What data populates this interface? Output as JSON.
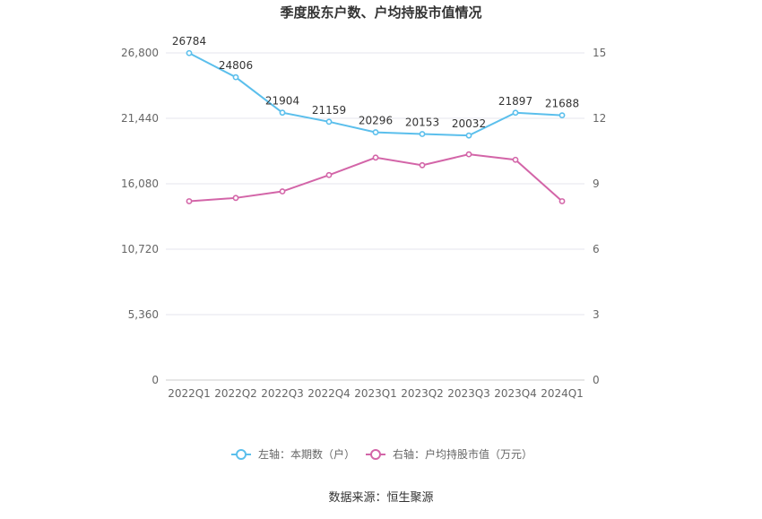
{
  "chart_data": {
    "type": "line",
    "title": "季度股东户数、户均持股市值情况",
    "categories": [
      "2022Q1",
      "2022Q2",
      "2022Q3",
      "2022Q4",
      "2023Q1",
      "2023Q2",
      "2023Q3",
      "2023Q4",
      "2024Q1"
    ],
    "left_axis": {
      "ticks": [
        "0",
        "5,360",
        "10,720",
        "16,080",
        "21,440",
        "26,800"
      ],
      "ylim": [
        0,
        26800
      ]
    },
    "right_axis": {
      "ticks": [
        "0",
        "3",
        "6",
        "9",
        "12",
        "15"
      ],
      "ylim": [
        0,
        15
      ]
    },
    "series": [
      {
        "name": "左轴：本期数（户）",
        "axis": "left",
        "color": "#5bbfec",
        "values": [
          26784,
          24806,
          21904,
          21159,
          20296,
          20153,
          20032,
          21897,
          21688
        ],
        "labels": [
          "26784",
          "24806",
          "21904",
          "21159",
          "20296",
          "20153",
          "20032",
          "21897",
          "21688"
        ]
      },
      {
        "name": "右轴：户均持股市值（万元）",
        "axis": "right",
        "color": "#d365a8",
        "values": [
          8.2,
          8.35,
          8.65,
          9.4,
          10.2,
          9.85,
          10.35,
          10.1,
          8.2
        ]
      }
    ],
    "grid": true,
    "legend_position": "bottom"
  },
  "source_text": "数据来源：恒生聚源"
}
